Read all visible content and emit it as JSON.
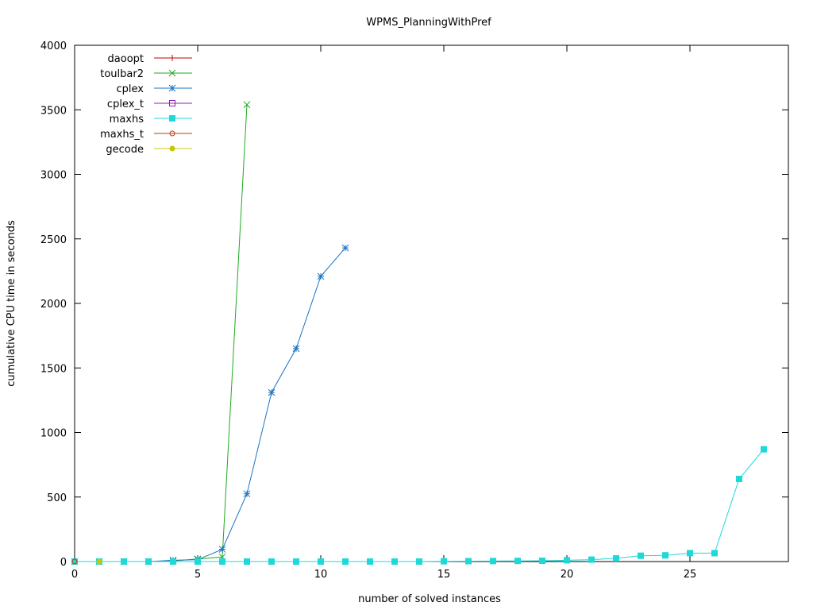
{
  "chart_data": {
    "type": "line",
    "title": "WPMS_PlanningWithPref",
    "xlabel": "number of solved instances",
    "ylabel": "cumulative CPU time in seconds",
    "xlim": [
      0,
      29
    ],
    "ylim": [
      0,
      4000
    ],
    "xticks": [
      0,
      5,
      10,
      15,
      20,
      25
    ],
    "yticks": [
      0,
      500,
      1000,
      1500,
      2000,
      2500,
      3000,
      3500,
      4000
    ],
    "grid": false,
    "legend_position": "top-left",
    "series": [
      {
        "name": "daoopt",
        "color": "#c00000",
        "marker": "plus",
        "points": []
      },
      {
        "name": "toulbar2",
        "color": "#1faa1f",
        "marker": "x",
        "points": [
          [
            0,
            0
          ],
          [
            1,
            0
          ],
          [
            2,
            0
          ],
          [
            3,
            0
          ],
          [
            4,
            5
          ],
          [
            5,
            20
          ],
          [
            6,
            35
          ],
          [
            7,
            3540
          ]
        ]
      },
      {
        "name": "cplex",
        "color": "#1a74c2",
        "marker": "star",
        "points": [
          [
            2,
            0
          ],
          [
            3,
            0
          ],
          [
            4,
            10
          ],
          [
            5,
            15
          ],
          [
            6,
            95
          ],
          [
            7,
            525
          ],
          [
            8,
            1310
          ],
          [
            9,
            1650
          ],
          [
            10,
            2210
          ],
          [
            11,
            2430
          ]
        ]
      },
      {
        "name": "cplex_t",
        "color": "#9020b0",
        "marker": "square-open",
        "points": []
      },
      {
        "name": "maxhs",
        "color": "#1fd8d8",
        "marker": "square-filled",
        "points": [
          [
            0,
            0
          ],
          [
            1,
            0
          ],
          [
            2,
            0
          ],
          [
            3,
            0
          ],
          [
            4,
            0
          ],
          [
            5,
            0
          ],
          [
            6,
            0
          ],
          [
            7,
            0
          ],
          [
            8,
            0
          ],
          [
            9,
            0
          ],
          [
            10,
            0
          ],
          [
            11,
            0
          ],
          [
            12,
            0
          ],
          [
            13,
            0
          ],
          [
            14,
            0
          ],
          [
            15,
            2
          ],
          [
            16,
            3
          ],
          [
            17,
            4
          ],
          [
            18,
            5
          ],
          [
            19,
            6
          ],
          [
            20,
            10
          ],
          [
            21,
            15
          ],
          [
            22,
            25
          ],
          [
            23,
            45
          ],
          [
            24,
            48
          ],
          [
            25,
            65
          ],
          [
            26,
            65
          ],
          [
            27,
            640
          ],
          [
            28,
            870
          ]
        ]
      },
      {
        "name": "maxhs_t",
        "color": "#b04010",
        "marker": "circle-open",
        "points": [
          [
            0,
            0
          ]
        ]
      },
      {
        "name": "gecode",
        "color": "#c8c800",
        "marker": "circle-filled",
        "points": [
          [
            1,
            0
          ]
        ]
      }
    ]
  }
}
